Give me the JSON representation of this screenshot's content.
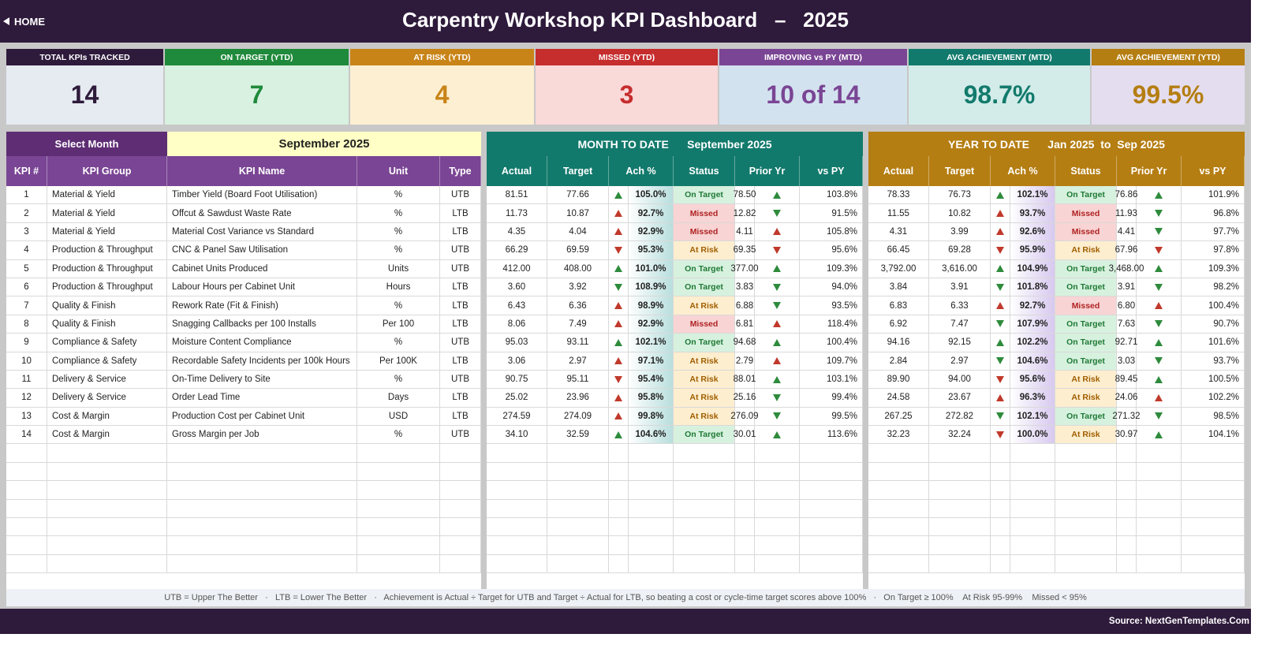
{
  "header": {
    "home_label": "HOME",
    "title": "Carpentry Workshop KPI Dashboard   –   2025"
  },
  "colors": {
    "header_bg": "#2e1a3b",
    "kpi_header": "#7a4594",
    "mtd_header": "#127a6c",
    "ytd_header": "#b57e12"
  },
  "cards": [
    {
      "label": "TOTAL KPIs TRACKED",
      "value": "14",
      "head": "#2e1a3b",
      "bg": "#e6eaf1",
      "fg": "#2e1a3b"
    },
    {
      "label": "ON TARGET (YTD)",
      "value": "7",
      "head": "#1f8a3b",
      "bg": "#d9f1e0",
      "fg": "#1f8a3b"
    },
    {
      "label": "AT RISK (YTD)",
      "value": "4",
      "head": "#c98418",
      "bg": "#fdefd2",
      "fg": "#c98418"
    },
    {
      "label": "MISSED (YTD)",
      "value": "3",
      "head": "#c62d2d",
      "bg": "#fad9d9",
      "fg": "#c62d2d"
    },
    {
      "label": "IMPROVING vs PY (MTD)",
      "value": "10 of 14",
      "head": "#7a4594",
      "bg": "#d3e2ef",
      "fg": "#7a4594"
    },
    {
      "label": "AVG ACHIEVEMENT (MTD)",
      "value": "98.7%",
      "head": "#127a6c",
      "bg": "#d3ece9",
      "fg": "#127a6c"
    },
    {
      "label": "AVG ACHIEVEMENT (YTD)",
      "value": "99.5%",
      "head": "#b57e12",
      "bg": "#e4ddef",
      "fg": "#b57e12"
    }
  ],
  "select": {
    "label": "Select Month",
    "value": "September 2025"
  },
  "left_headers": [
    "KPI #",
    "KPI Group",
    "KPI Name",
    "Unit",
    "Type"
  ],
  "mtd": {
    "title": "MONTH TO DATE      September 2025"
  },
  "ytd": {
    "title": "YEAR TO DATE      Jan 2025  to  Sep 2025"
  },
  "num_headers": [
    "Actual",
    "Target",
    "Ach %",
    "Status",
    "Prior Yr",
    "vs PY"
  ],
  "rows": [
    {
      "num": "1",
      "group": "Material & Yield",
      "name": "Timber Yield (Board Foot Utilisation)",
      "unit": "%",
      "type": "UTB",
      "mtd": {
        "actual": "81.51",
        "target": "77.66",
        "ach_arrow": "up",
        "ach_good": true,
        "ach": "105.0%",
        "status": "On Target",
        "prior": "78.50",
        "py_arrow": "up",
        "py_good": true,
        "vspy": "103.8%"
      },
      "ytd": {
        "actual": "78.33",
        "target": "76.73",
        "ach_arrow": "up",
        "ach_good": true,
        "ach": "102.1%",
        "status": "On Target",
        "prior": "76.86",
        "py_arrow": "up",
        "py_good": true,
        "vspy": "101.9%"
      }
    },
    {
      "num": "2",
      "group": "Material & Yield",
      "name": "Offcut & Sawdust Waste Rate",
      "unit": "%",
      "type": "LTB",
      "mtd": {
        "actual": "11.73",
        "target": "10.87",
        "ach_arrow": "up",
        "ach_good": false,
        "ach": "92.7%",
        "status": "Missed",
        "prior": "12.82",
        "py_arrow": "down",
        "py_good": true,
        "vspy": "91.5%"
      },
      "ytd": {
        "actual": "11.55",
        "target": "10.82",
        "ach_arrow": "up",
        "ach_good": false,
        "ach": "93.7%",
        "status": "Missed",
        "prior": "11.93",
        "py_arrow": "down",
        "py_good": true,
        "vspy": "96.8%"
      }
    },
    {
      "num": "3",
      "group": "Material & Yield",
      "name": "Material Cost Variance vs Standard",
      "unit": "%",
      "type": "LTB",
      "mtd": {
        "actual": "4.35",
        "target": "4.04",
        "ach_arrow": "up",
        "ach_good": false,
        "ach": "92.9%",
        "status": "Missed",
        "prior": "4.11",
        "py_arrow": "up",
        "py_good": false,
        "vspy": "105.8%"
      },
      "ytd": {
        "actual": "4.31",
        "target": "3.99",
        "ach_arrow": "up",
        "ach_good": false,
        "ach": "92.6%",
        "status": "Missed",
        "prior": "4.41",
        "py_arrow": "down",
        "py_good": true,
        "vspy": "97.7%"
      }
    },
    {
      "num": "4",
      "group": "Production & Throughput",
      "name": "CNC & Panel Saw Utilisation",
      "unit": "%",
      "type": "UTB",
      "mtd": {
        "actual": "66.29",
        "target": "69.59",
        "ach_arrow": "down",
        "ach_good": false,
        "ach": "95.3%",
        "status": "At Risk",
        "prior": "69.35",
        "py_arrow": "down",
        "py_good": false,
        "vspy": "95.6%"
      },
      "ytd": {
        "actual": "66.45",
        "target": "69.28",
        "ach_arrow": "down",
        "ach_good": false,
        "ach": "95.9%",
        "status": "At Risk",
        "prior": "67.96",
        "py_arrow": "down",
        "py_good": false,
        "vspy": "97.8%"
      }
    },
    {
      "num": "5",
      "group": "Production & Throughput",
      "name": "Cabinet Units Produced",
      "unit": "Units",
      "type": "UTB",
      "mtd": {
        "actual": "412.00",
        "target": "408.00",
        "ach_arrow": "up",
        "ach_good": true,
        "ach": "101.0%",
        "status": "On Target",
        "prior": "377.00",
        "py_arrow": "up",
        "py_good": true,
        "vspy": "109.3%"
      },
      "ytd": {
        "actual": "3,792.00",
        "target": "3,616.00",
        "ach_arrow": "up",
        "ach_good": true,
        "ach": "104.9%",
        "status": "On Target",
        "prior": "3,468.00",
        "py_arrow": "up",
        "py_good": true,
        "vspy": "109.3%"
      }
    },
    {
      "num": "6",
      "group": "Production & Throughput",
      "name": "Labour Hours per Cabinet Unit",
      "unit": "Hours",
      "type": "LTB",
      "mtd": {
        "actual": "3.60",
        "target": "3.92",
        "ach_arrow": "down",
        "ach_good": true,
        "ach": "108.9%",
        "status": "On Target",
        "prior": "3.83",
        "py_arrow": "down",
        "py_good": true,
        "vspy": "94.0%"
      },
      "ytd": {
        "actual": "3.84",
        "target": "3.91",
        "ach_arrow": "down",
        "ach_good": true,
        "ach": "101.8%",
        "status": "On Target",
        "prior": "3.91",
        "py_arrow": "down",
        "py_good": true,
        "vspy": "98.2%"
      }
    },
    {
      "num": "7",
      "group": "Quality & Finish",
      "name": "Rework Rate (Fit & Finish)",
      "unit": "%",
      "type": "LTB",
      "mtd": {
        "actual": "6.43",
        "target": "6.36",
        "ach_arrow": "up",
        "ach_good": false,
        "ach": "98.9%",
        "status": "At Risk",
        "prior": "6.88",
        "py_arrow": "down",
        "py_good": true,
        "vspy": "93.5%"
      },
      "ytd": {
        "actual": "6.83",
        "target": "6.33",
        "ach_arrow": "up",
        "ach_good": false,
        "ach": "92.7%",
        "status": "Missed",
        "prior": "6.80",
        "py_arrow": "up",
        "py_good": false,
        "vspy": "100.4%"
      }
    },
    {
      "num": "8",
      "group": "Quality & Finish",
      "name": "Snagging Callbacks per 100 Installs",
      "unit": "Per 100",
      "type": "LTB",
      "mtd": {
        "actual": "8.06",
        "target": "7.49",
        "ach_arrow": "up",
        "ach_good": false,
        "ach": "92.9%",
        "status": "Missed",
        "prior": "6.81",
        "py_arrow": "up",
        "py_good": false,
        "vspy": "118.4%"
      },
      "ytd": {
        "actual": "6.92",
        "target": "7.47",
        "ach_arrow": "down",
        "ach_good": true,
        "ach": "107.9%",
        "status": "On Target",
        "prior": "7.63",
        "py_arrow": "down",
        "py_good": true,
        "vspy": "90.7%"
      }
    },
    {
      "num": "9",
      "group": "Compliance & Safety",
      "name": "Moisture Content Compliance",
      "unit": "%",
      "type": "UTB",
      "mtd": {
        "actual": "95.03",
        "target": "93.11",
        "ach_arrow": "up",
        "ach_good": true,
        "ach": "102.1%",
        "status": "On Target",
        "prior": "94.68",
        "py_arrow": "up",
        "py_good": true,
        "vspy": "100.4%"
      },
      "ytd": {
        "actual": "94.16",
        "target": "92.15",
        "ach_arrow": "up",
        "ach_good": true,
        "ach": "102.2%",
        "status": "On Target",
        "prior": "92.71",
        "py_arrow": "up",
        "py_good": true,
        "vspy": "101.6%"
      }
    },
    {
      "num": "10",
      "group": "Compliance & Safety",
      "name": "Recordable Safety Incidents per 100k Hours",
      "unit": "Per 100K",
      "type": "LTB",
      "mtd": {
        "actual": "3.06",
        "target": "2.97",
        "ach_arrow": "up",
        "ach_good": false,
        "ach": "97.1%",
        "status": "At Risk",
        "prior": "2.79",
        "py_arrow": "up",
        "py_good": false,
        "vspy": "109.7%"
      },
      "ytd": {
        "actual": "2.84",
        "target": "2.97",
        "ach_arrow": "down",
        "ach_good": true,
        "ach": "104.6%",
        "status": "On Target",
        "prior": "3.03",
        "py_arrow": "down",
        "py_good": true,
        "vspy": "93.7%"
      }
    },
    {
      "num": "11",
      "group": "Delivery & Service",
      "name": "On-Time Delivery to Site",
      "unit": "%",
      "type": "UTB",
      "mtd": {
        "actual": "90.75",
        "target": "95.11",
        "ach_arrow": "down",
        "ach_good": false,
        "ach": "95.4%",
        "status": "At Risk",
        "prior": "88.01",
        "py_arrow": "up",
        "py_good": true,
        "vspy": "103.1%"
      },
      "ytd": {
        "actual": "89.90",
        "target": "94.00",
        "ach_arrow": "down",
        "ach_good": false,
        "ach": "95.6%",
        "status": "At Risk",
        "prior": "89.45",
        "py_arrow": "up",
        "py_good": true,
        "vspy": "100.5%"
      }
    },
    {
      "num": "12",
      "group": "Delivery & Service",
      "name": "Order Lead Time",
      "unit": "Days",
      "type": "LTB",
      "mtd": {
        "actual": "25.02",
        "target": "23.96",
        "ach_arrow": "up",
        "ach_good": false,
        "ach": "95.8%",
        "status": "At Risk",
        "prior": "25.16",
        "py_arrow": "down",
        "py_good": true,
        "vspy": "99.4%"
      },
      "ytd": {
        "actual": "24.58",
        "target": "23.67",
        "ach_arrow": "up",
        "ach_good": false,
        "ach": "96.3%",
        "status": "At Risk",
        "prior": "24.06",
        "py_arrow": "up",
        "py_good": false,
        "vspy": "102.2%"
      }
    },
    {
      "num": "13",
      "group": "Cost & Margin",
      "name": "Production Cost per Cabinet Unit",
      "unit": "USD",
      "type": "LTB",
      "mtd": {
        "actual": "274.59",
        "target": "274.09",
        "ach_arrow": "up",
        "ach_good": false,
        "ach": "99.8%",
        "status": "At Risk",
        "prior": "276.09",
        "py_arrow": "down",
        "py_good": true,
        "vspy": "99.5%"
      },
      "ytd": {
        "actual": "267.25",
        "target": "272.82",
        "ach_arrow": "down",
        "ach_good": true,
        "ach": "102.1%",
        "status": "On Target",
        "prior": "271.32",
        "py_arrow": "down",
        "py_good": true,
        "vspy": "98.5%"
      }
    },
    {
      "num": "14",
      "group": "Cost & Margin",
      "name": "Gross Margin per Job",
      "unit": "%",
      "type": "UTB",
      "mtd": {
        "actual": "34.10",
        "target": "32.59",
        "ach_arrow": "up",
        "ach_good": true,
        "ach": "104.6%",
        "status": "On Target",
        "prior": "30.01",
        "py_arrow": "up",
        "py_good": true,
        "vspy": "113.6%"
      },
      "ytd": {
        "actual": "32.23",
        "target": "32.24",
        "ach_arrow": "down",
        "ach_good": false,
        "ach": "100.0%",
        "status": "At Risk",
        "prior": "30.97",
        "py_arrow": "up",
        "py_good": true,
        "vspy": "104.1%"
      }
    }
  ],
  "legend": "UTB = Upper The Better   ·   LTB = Lower The Better   ·   Achievement is Actual ÷ Target for UTB and Target ÷ Actual for LTB, so beating a cost or cycle-time target scores above 100%   ·   On Target ≥ 100%    At Risk 95-99%    Missed < 95%",
  "source": "Source: NextGenTemplates.Com"
}
